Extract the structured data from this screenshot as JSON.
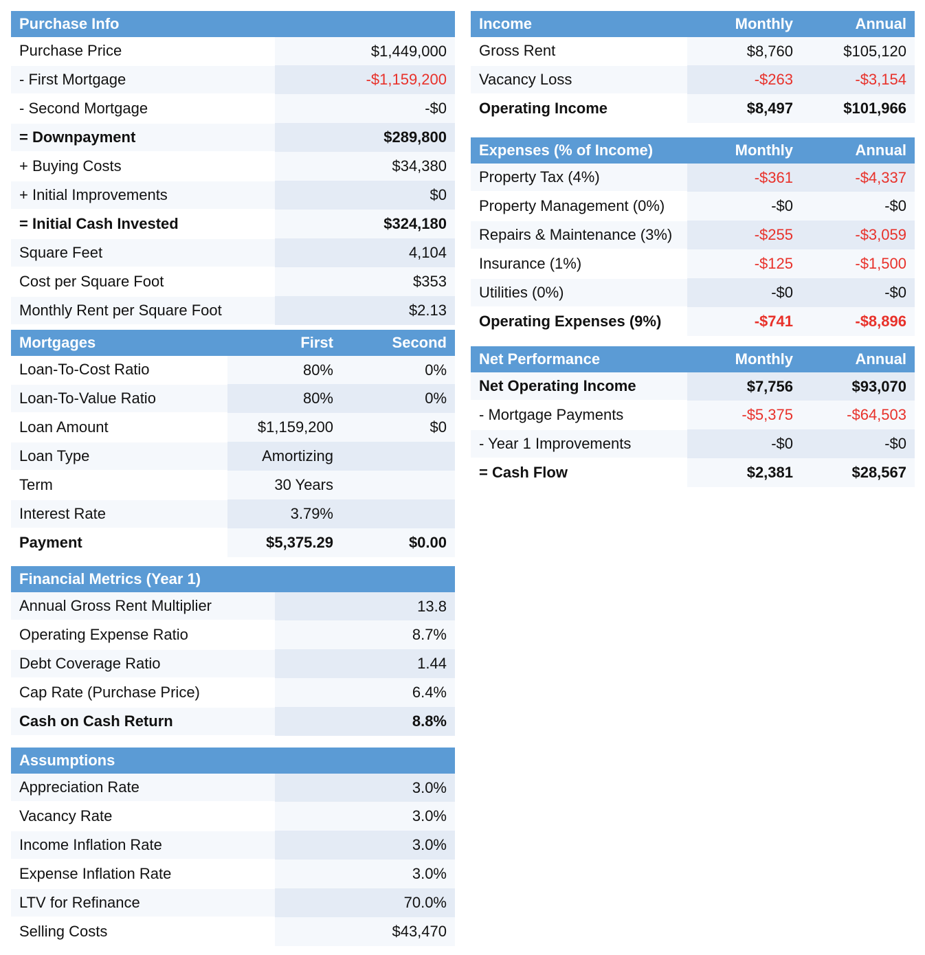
{
  "purchase": {
    "title": "Purchase Info",
    "rows": [
      {
        "label": "Purchase Price",
        "value": "$1,449,000"
      },
      {
        "label": "- First Mortgage",
        "value": "-$1,159,200"
      },
      {
        "label": "- Second Mortgage",
        "value": "-$0"
      },
      {
        "label": "= Downpayment",
        "value": "$289,800"
      },
      {
        "label": "+ Buying Costs",
        "value": "$34,380"
      },
      {
        "label": "+ Initial Improvements",
        "value": "$0"
      },
      {
        "label": "= Initial Cash Invested",
        "value": "$324,180"
      },
      {
        "label": "Square Feet",
        "value": "4,104"
      },
      {
        "label": "Cost per Square Foot",
        "value": "$353"
      },
      {
        "label": "Monthly Rent per Square Foot",
        "value": "$2.13"
      }
    ]
  },
  "mortgages": {
    "title": "Mortgages",
    "col1": "First",
    "col2": "Second",
    "rows": [
      {
        "label": "Loan-To-Cost Ratio",
        "first": "80%",
        "second": "0%"
      },
      {
        "label": "Loan-To-Value Ratio",
        "first": "80%",
        "second": "0%"
      },
      {
        "label": "Loan Amount",
        "first": "$1,159,200",
        "second": "$0"
      },
      {
        "label": "Loan Type",
        "first": "Amortizing",
        "second": ""
      },
      {
        "label": "Term",
        "first": "30 Years",
        "second": ""
      },
      {
        "label": "Interest Rate",
        "first": "3.79%",
        "second": ""
      },
      {
        "label": "Payment",
        "first": "$5,375.29",
        "second": "$0.00"
      }
    ]
  },
  "metrics": {
    "title": "Financial Metrics (Year 1)",
    "rows": [
      {
        "label": "Annual Gross Rent Multiplier",
        "value": "13.8"
      },
      {
        "label": "Operating Expense Ratio",
        "value": "8.7%"
      },
      {
        "label": "Debt Coverage Ratio",
        "value": "1.44"
      },
      {
        "label": "Cap Rate (Purchase Price)",
        "value": "6.4%"
      },
      {
        "label": "Cash on Cash Return",
        "value": "8.8%"
      }
    ]
  },
  "assumptions": {
    "title": "Assumptions",
    "rows": [
      {
        "label": "Appreciation Rate",
        "value": "3.0%"
      },
      {
        "label": "Vacancy Rate",
        "value": "3.0%"
      },
      {
        "label": "Income Inflation Rate",
        "value": "3.0%"
      },
      {
        "label": "Expense Inflation Rate",
        "value": "3.0%"
      },
      {
        "label": "LTV for Refinance",
        "value": "70.0%"
      },
      {
        "label": "Selling Costs",
        "value": "$43,470"
      }
    ]
  },
  "income": {
    "title": "Income",
    "col1": "Monthly",
    "col2": "Annual",
    "rows": [
      {
        "label": "Gross Rent",
        "monthly": "$8,760",
        "annual": "$105,120"
      },
      {
        "label": "Vacancy Loss",
        "monthly": "-$263",
        "annual": "-$3,154"
      },
      {
        "label": "Operating Income",
        "monthly": "$8,497",
        "annual": "$101,966"
      }
    ]
  },
  "expenses": {
    "title": "Expenses (% of Income)",
    "col1": "Monthly",
    "col2": "Annual",
    "rows": [
      {
        "label": "Property Tax (4%)",
        "monthly": "-$361",
        "annual": "-$4,337"
      },
      {
        "label": "Property Management (0%)",
        "monthly": "-$0",
        "annual": "-$0"
      },
      {
        "label": "Repairs & Maintenance (3%)",
        "monthly": "-$255",
        "annual": "-$3,059"
      },
      {
        "label": "Insurance (1%)",
        "monthly": "-$125",
        "annual": "-$1,500"
      },
      {
        "label": "Utilities (0%)",
        "monthly": "-$0",
        "annual": "-$0"
      },
      {
        "label": "Operating Expenses (9%)",
        "monthly": "-$741",
        "annual": "-$8,896"
      }
    ]
  },
  "net": {
    "title": "Net Performance",
    "col1": "Monthly",
    "col2": "Annual",
    "rows": [
      {
        "label": "Net Operating Income",
        "monthly": "$7,756",
        "annual": "$93,070"
      },
      {
        "label": "- Mortgage Payments",
        "monthly": "-$5,375",
        "annual": "-$64,503"
      },
      {
        "label": "- Year 1 Improvements",
        "monthly": "-$0",
        "annual": "-$0"
      },
      {
        "label": "= Cash Flow",
        "monthly": "$2,381",
        "annual": "$28,567"
      }
    ]
  },
  "colors": {
    "header": "#5b9bd5",
    "negative": "#e8312a",
    "band": "#e4ebf5"
  }
}
